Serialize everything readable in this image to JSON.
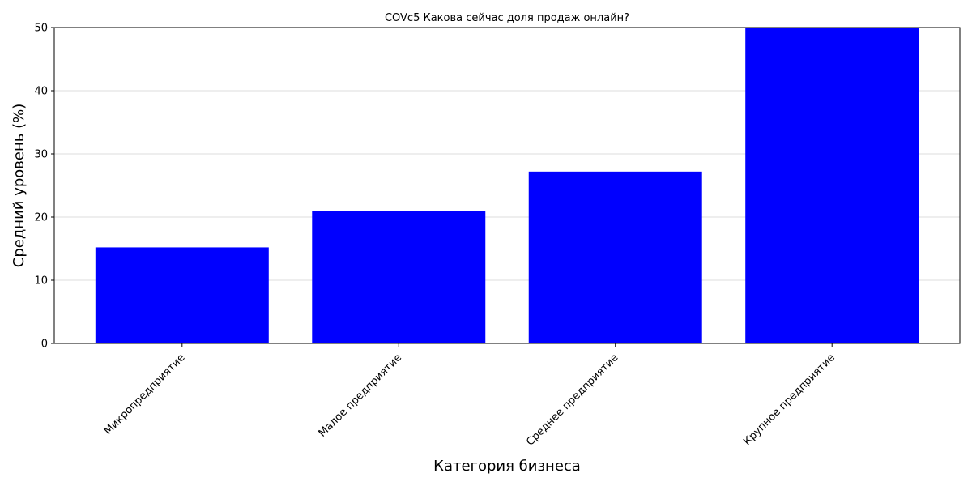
{
  "chart_data": {
    "type": "bar",
    "title": "COVc5 Какова сейчас доля продаж онлайн?",
    "xlabel": "Категория бизнеса",
    "ylabel": "Средний уровень (%)",
    "categories": [
      "Микропредприятие",
      "Малое предприятие",
      "Среднее предприятие",
      "Крупное предприятие"
    ],
    "values": [
      15.2,
      21.0,
      27.2,
      50.0
    ],
    "ylim": [
      0,
      50
    ],
    "yticks": [
      0,
      10,
      20,
      30,
      40,
      50
    ],
    "grid": "y",
    "bar_color": "#0000ff",
    "grid_color": "#d3d3d3"
  }
}
